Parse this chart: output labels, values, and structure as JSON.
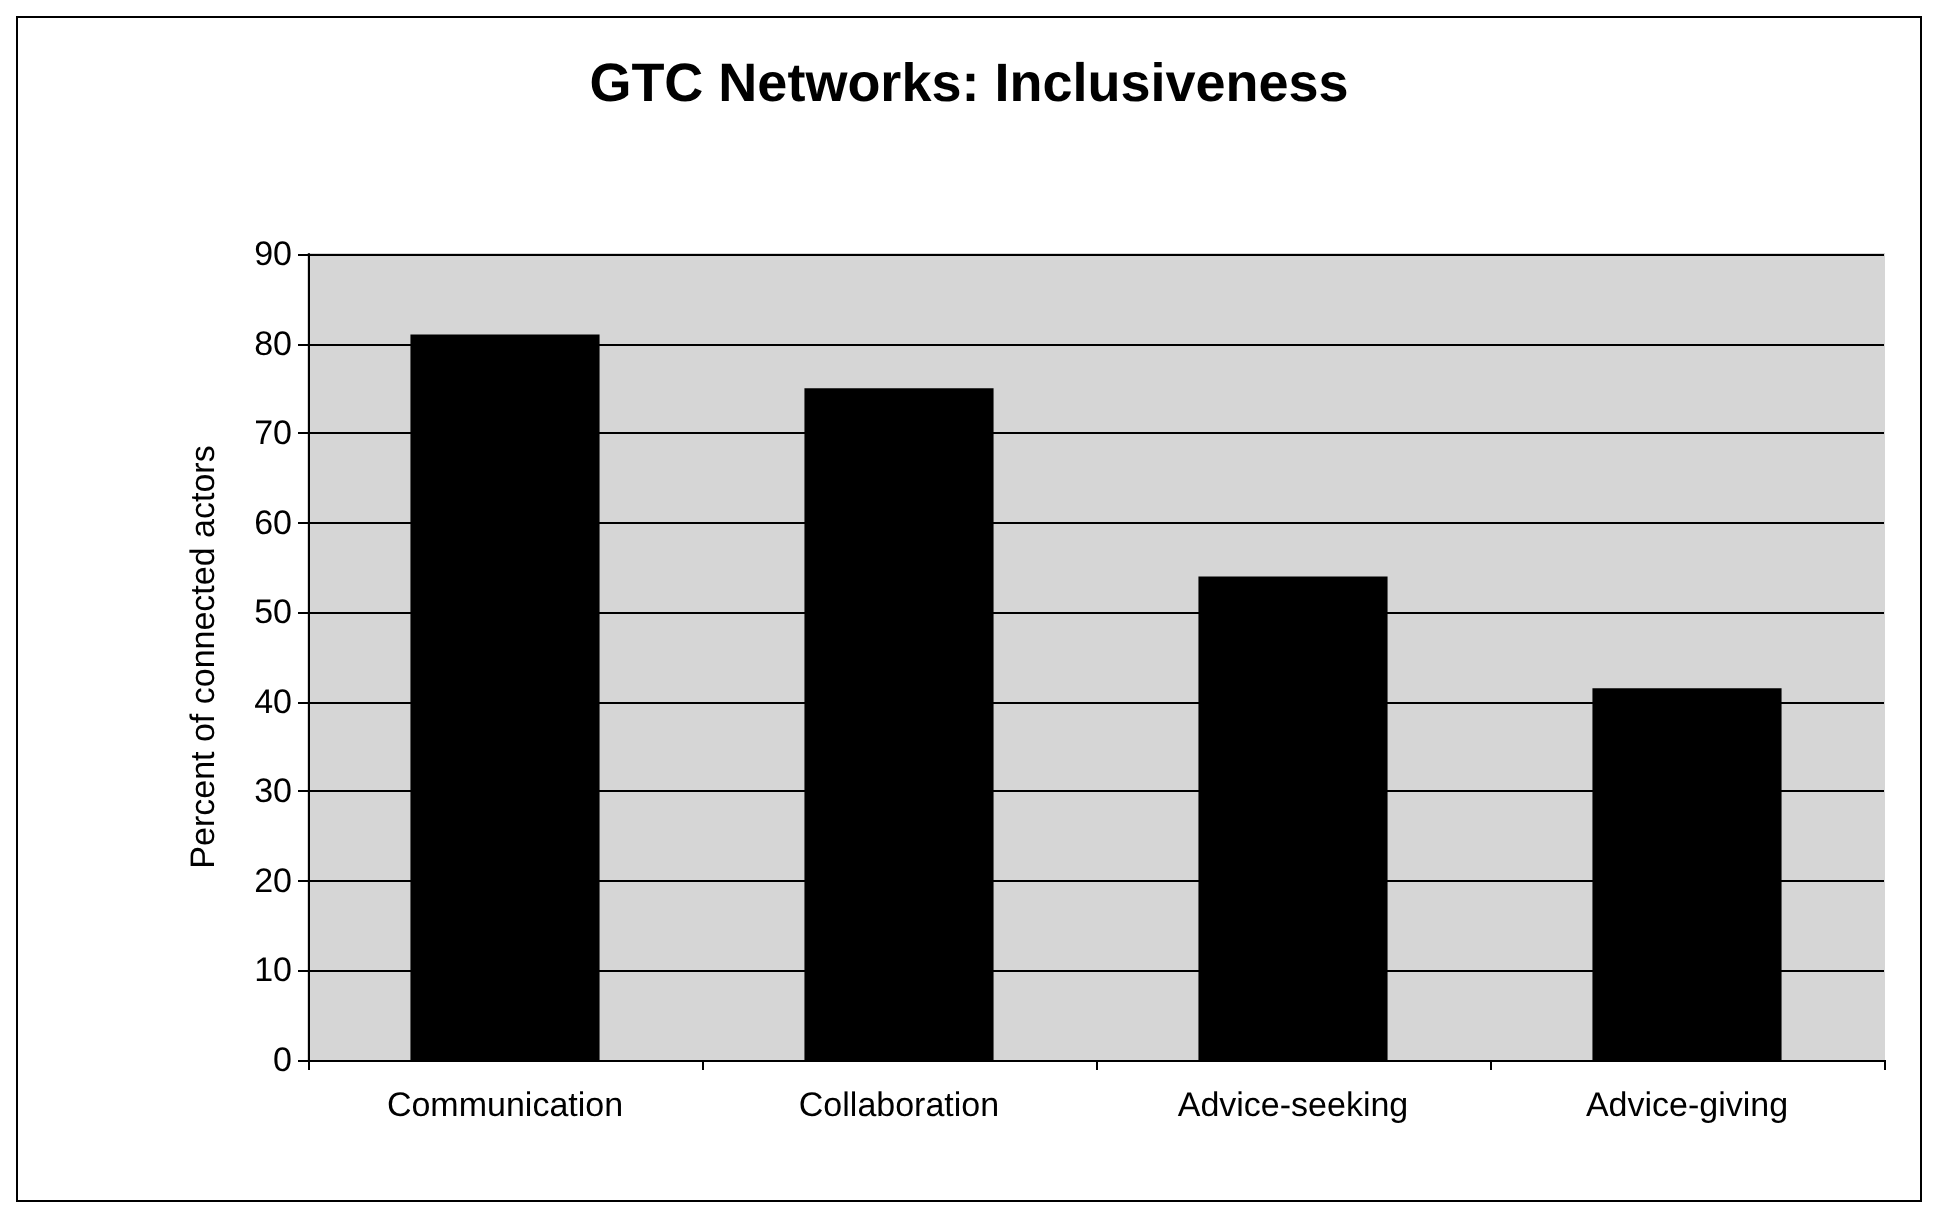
{
  "chart_data": {
    "type": "bar",
    "title": "GTC Networks: Inclusiveness",
    "ylabel": "Percent of connected actors",
    "categories": [
      "Communication",
      "Collaboration",
      "Advice-seeking",
      "Advice-giving"
    ],
    "values": [
      81,
      75,
      54,
      41.5
    ],
    "color": "#000000",
    "ylim": [
      0,
      90
    ],
    "yticks": [
      0,
      10,
      20,
      30,
      40,
      50,
      60,
      70,
      80,
      90
    ],
    "grid": "y"
  }
}
